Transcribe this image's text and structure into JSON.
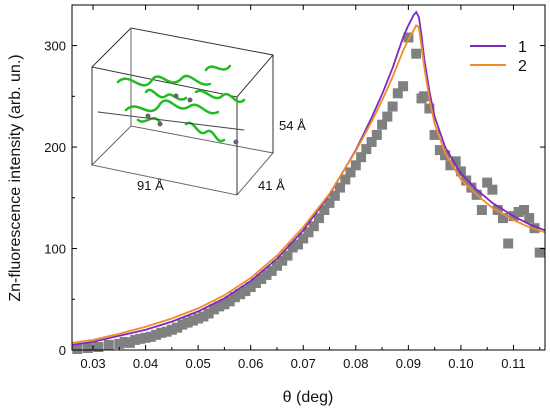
{
  "chart_data": {
    "type": "scatter",
    "xlabel": "θ (deg)",
    "ylabel": "Zn-fluorescence intensity (arb. un.)",
    "xlim": [
      0.026,
      0.116
    ],
    "ylim": [
      0,
      340
    ],
    "x_ticks": [
      0.03,
      0.04,
      0.05,
      0.06,
      0.07,
      0.08,
      0.09,
      0.1,
      0.11
    ],
    "y_ticks": [
      0,
      100,
      200,
      300
    ],
    "grid": false,
    "legend_position": "top-right",
    "measured": {
      "color": "#808080",
      "points": [
        [
          0.027,
          1
        ],
        [
          0.029,
          2
        ],
        [
          0.031,
          3
        ],
        [
          0.033,
          5
        ],
        [
          0.035,
          6
        ],
        [
          0.036,
          8
        ],
        [
          0.037,
          7
        ],
        [
          0.038,
          10
        ],
        [
          0.039,
          11
        ],
        [
          0.04,
          12
        ],
        [
          0.041,
          13
        ],
        [
          0.042,
          15
        ],
        [
          0.043,
          17
        ],
        [
          0.044,
          18
        ],
        [
          0.045,
          20
        ],
        [
          0.046,
          22
        ],
        [
          0.047,
          25
        ],
        [
          0.048,
          27
        ],
        [
          0.049,
          29
        ],
        [
          0.05,
          31
        ],
        [
          0.051,
          33
        ],
        [
          0.052,
          36
        ],
        [
          0.053,
          40
        ],
        [
          0.054,
          43
        ],
        [
          0.055,
          45
        ],
        [
          0.056,
          48
        ],
        [
          0.057,
          52
        ],
        [
          0.058,
          55
        ],
        [
          0.059,
          58
        ],
        [
          0.06,
          62
        ],
        [
          0.061,
          66
        ],
        [
          0.062,
          70
        ],
        [
          0.063,
          74
        ],
        [
          0.064,
          78
        ],
        [
          0.065,
          83
        ],
        [
          0.066,
          88
        ],
        [
          0.067,
          93
        ],
        [
          0.068,
          101
        ],
        [
          0.069,
          104
        ],
        [
          0.07,
          110
        ],
        [
          0.071,
          116
        ],
        [
          0.072,
          122
        ],
        [
          0.073,
          130
        ],
        [
          0.074,
          138
        ],
        [
          0.075,
          145
        ],
        [
          0.076,
          152
        ],
        [
          0.077,
          160
        ],
        [
          0.078,
          168
        ],
        [
          0.079,
          175
        ],
        [
          0.08,
          182
        ],
        [
          0.081,
          190
        ],
        [
          0.082,
          198
        ],
        [
          0.083,
          205
        ],
        [
          0.084,
          212
        ],
        [
          0.085,
          222
        ],
        [
          0.086,
          230
        ],
        [
          0.087,
          240
        ],
        [
          0.088,
          253
        ],
        [
          0.089,
          260
        ],
        [
          0.09,
          308
        ],
        [
          0.0915,
          292
        ],
        [
          0.0925,
          248
        ],
        [
          0.093,
          250
        ],
        [
          0.094,
          238
        ],
        [
          0.095,
          212
        ],
        [
          0.096,
          197
        ],
        [
          0.097,
          192
        ],
        [
          0.098,
          182
        ],
        [
          0.099,
          186
        ],
        [
          0.1,
          176
        ],
        [
          0.101,
          167
        ],
        [
          0.102,
          160
        ],
        [
          0.103,
          153
        ],
        [
          0.104,
          138
        ],
        [
          0.105,
          165
        ],
        [
          0.106,
          158
        ],
        [
          0.107,
          138
        ],
        [
          0.108,
          130
        ],
        [
          0.109,
          105
        ],
        [
          0.11,
          132
        ],
        [
          0.111,
          136
        ],
        [
          0.112,
          138
        ],
        [
          0.113,
          130
        ],
        [
          0.114,
          120
        ],
        [
          0.115,
          96
        ]
      ]
    },
    "series": [
      {
        "name": "1",
        "color": "#7b2cbf",
        "x": [
          0.026,
          0.03,
          0.035,
          0.04,
          0.045,
          0.05,
          0.055,
          0.06,
          0.065,
          0.07,
          0.075,
          0.08,
          0.083,
          0.085,
          0.087,
          0.088,
          0.089,
          0.09,
          0.091,
          0.0915,
          0.092,
          0.0925,
          0.093,
          0.094,
          0.095,
          0.097,
          0.1,
          0.103,
          0.106,
          0.11,
          0.113,
          0.116
        ],
        "y": [
          5,
          8,
          14,
          20,
          28,
          38,
          51,
          68,
          90,
          118,
          153,
          197,
          229,
          252,
          278,
          293,
          308,
          320,
          330,
          333,
          328,
          310,
          288,
          255,
          230,
          200,
          174,
          158,
          145,
          132,
          124,
          118
        ]
      },
      {
        "name": "2",
        "color": "#f28c28",
        "x": [
          0.026,
          0.03,
          0.035,
          0.04,
          0.045,
          0.05,
          0.055,
          0.06,
          0.065,
          0.07,
          0.075,
          0.08,
          0.083,
          0.085,
          0.087,
          0.088,
          0.089,
          0.09,
          0.091,
          0.0915,
          0.092,
          0.0925,
          0.093,
          0.094,
          0.095,
          0.097,
          0.1,
          0.103,
          0.106,
          0.11,
          0.113,
          0.116
        ],
        "y": [
          7,
          10,
          16,
          23,
          31,
          41,
          54,
          71,
          93,
          121,
          154,
          196,
          225,
          246,
          269,
          282,
          295,
          306,
          315,
          320,
          318,
          300,
          280,
          248,
          223,
          194,
          168,
          153,
          140,
          128,
          121,
          116
        ]
      }
    ],
    "inset": {
      "labels": [
        "54 Å",
        "91 Å",
        "41 Å"
      ],
      "molecule_color": "#22bb22"
    }
  }
}
